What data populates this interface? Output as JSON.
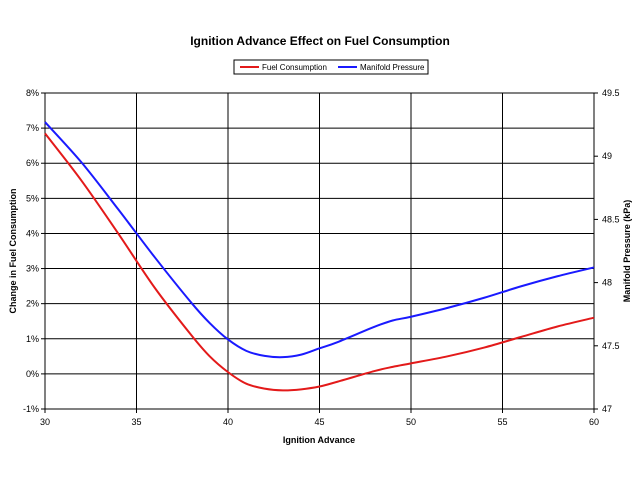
{
  "chart_data": {
    "type": "line",
    "title": "Ignition Advance Effect on Fuel Consumption",
    "xlabel": "Ignition Advance",
    "ylabel": "Change in Fuel Consumption",
    "y2label": "Manifold Pressure (kPa)",
    "xlim": [
      30,
      60
    ],
    "ylim": [
      -1,
      8
    ],
    "y2lim": [
      47,
      49.5
    ],
    "x_ticks": [
      "30",
      "35",
      "40",
      "45",
      "50",
      "55",
      "60"
    ],
    "y_ticks": [
      "-1%",
      "0%",
      "1%",
      "2%",
      "3%",
      "4%",
      "5%",
      "6%",
      "7%",
      "8%"
    ],
    "y2_ticks": [
      "47",
      "47.5",
      "48",
      "48.5",
      "49",
      "49.5"
    ],
    "grid": true,
    "legend_position": "top-center",
    "series": [
      {
        "name": "Fuel Consumption",
        "axis": "left",
        "color": "#e31a1a",
        "x": [
          30,
          32,
          34,
          36,
          38,
          39,
          40,
          41,
          42,
          43,
          44,
          45,
          46,
          48,
          49,
          50,
          52,
          54,
          56,
          58,
          60
        ],
        "values": [
          6.85,
          5.5,
          4.0,
          2.45,
          1.1,
          0.5,
          0.05,
          -0.28,
          -0.42,
          -0.47,
          -0.44,
          -0.36,
          -0.22,
          0.08,
          0.2,
          0.3,
          0.5,
          0.75,
          1.05,
          1.35,
          1.6
        ]
      },
      {
        "name": "Manifold Pressure",
        "axis": "right",
        "color": "#1a1aff",
        "x": [
          30,
          32,
          34,
          36,
          38,
          39,
          40,
          41,
          42,
          43,
          44,
          45,
          46,
          48,
          49,
          50,
          52,
          54,
          56,
          58,
          60
        ],
        "values": [
          49.27,
          48.95,
          48.58,
          48.2,
          47.84,
          47.68,
          47.55,
          47.46,
          47.42,
          47.41,
          47.43,
          47.48,
          47.53,
          47.65,
          47.7,
          47.73,
          47.8,
          47.88,
          47.97,
          48.05,
          48.12
        ]
      }
    ]
  }
}
